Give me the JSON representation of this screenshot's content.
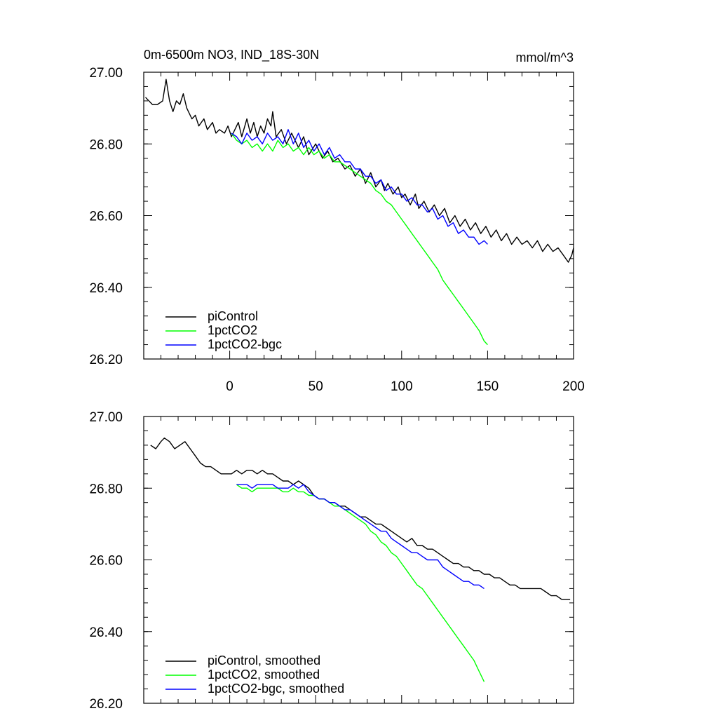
{
  "chart_data": [
    {
      "type": "line",
      "title": "0m-6500m NO3, IND_18S-30N",
      "units": "mmol/m^3",
      "xlim": [
        -50,
        200
      ],
      "ylim": [
        26.2,
        27.0
      ],
      "yticks": [
        "26.20",
        "26.40",
        "26.60",
        "26.80",
        "27.00"
      ],
      "xticks": [
        "0",
        "50",
        "100",
        "150",
        "200"
      ],
      "show_x_tick_labels": true,
      "legend_position": "bottom-left",
      "series": [
        {
          "name": "piControl",
          "color": "#000000",
          "x": [
            -49,
            -45,
            -42,
            -39,
            -37,
            -35,
            -33,
            -31,
            -29,
            -27,
            -25,
            -22,
            -20,
            -18,
            -15,
            -13,
            -10,
            -8,
            -6,
            -3,
            -1,
            1,
            3,
            5,
            7,
            10,
            12,
            14,
            16,
            18,
            20,
            22,
            24,
            25,
            27,
            30,
            33,
            36,
            40,
            43,
            46,
            50,
            54,
            57,
            60,
            63,
            67,
            70,
            73,
            76,
            79,
            82,
            85,
            88,
            90,
            92,
            95,
            98,
            100,
            102,
            105,
            108,
            110,
            113,
            116,
            119,
            122,
            125,
            128,
            131,
            134,
            137,
            140,
            143,
            146,
            149,
            152,
            155,
            158,
            161,
            164,
            167,
            170,
            173,
            176,
            179,
            182,
            185,
            188,
            191,
            194,
            197,
            199,
            200
          ],
          "values": [
            26.93,
            26.91,
            26.91,
            26.92,
            26.98,
            26.92,
            26.89,
            26.92,
            26.91,
            26.94,
            26.9,
            26.87,
            26.88,
            26.85,
            26.87,
            26.84,
            26.86,
            26.83,
            26.84,
            26.83,
            26.85,
            26.82,
            26.84,
            26.86,
            26.82,
            26.87,
            26.83,
            26.86,
            26.82,
            26.85,
            26.83,
            26.87,
            26.85,
            26.89,
            26.82,
            26.84,
            26.8,
            26.83,
            26.79,
            26.82,
            26.77,
            26.8,
            26.76,
            26.78,
            26.75,
            26.76,
            26.73,
            26.74,
            26.71,
            26.73,
            26.69,
            26.72,
            26.68,
            26.7,
            26.67,
            26.69,
            26.66,
            26.68,
            26.65,
            26.66,
            26.63,
            26.66,
            26.62,
            26.64,
            26.61,
            26.63,
            26.6,
            26.62,
            26.58,
            26.6,
            26.57,
            26.59,
            26.56,
            26.58,
            26.55,
            26.57,
            26.54,
            26.56,
            26.53,
            26.55,
            26.52,
            26.54,
            26.52,
            26.53,
            26.51,
            26.53,
            26.5,
            26.52,
            26.5,
            26.51,
            26.49,
            26.47,
            26.49,
            26.51
          ]
        },
        {
          "name": "1pctCO2",
          "color": "#00ff00",
          "x": [
            1,
            4,
            7,
            10,
            13,
            16,
            19,
            22,
            25,
            28,
            31,
            34,
            37,
            40,
            43,
            46,
            49,
            52,
            55,
            58,
            61,
            64,
            67,
            70,
            73,
            76,
            79,
            82,
            85,
            88,
            91,
            94,
            97,
            100,
            103,
            106,
            109,
            112,
            115,
            118,
            121,
            124,
            127,
            130,
            133,
            136,
            139,
            142,
            145,
            148,
            150
          ],
          "values": [
            26.83,
            26.81,
            26.8,
            26.81,
            26.79,
            26.8,
            26.78,
            26.8,
            26.78,
            26.81,
            26.79,
            26.8,
            26.78,
            26.79,
            26.77,
            26.79,
            26.77,
            26.78,
            26.76,
            26.77,
            26.75,
            26.75,
            26.74,
            26.73,
            26.72,
            26.71,
            26.7,
            26.69,
            26.67,
            26.66,
            26.64,
            26.63,
            26.61,
            26.59,
            26.57,
            26.55,
            26.53,
            26.51,
            26.49,
            26.47,
            26.45,
            26.42,
            26.4,
            26.38,
            26.36,
            26.34,
            26.32,
            26.3,
            26.28,
            26.25,
            26.24
          ]
        },
        {
          "name": "1pctCO2-bgc",
          "color": "#0000ff",
          "x": [
            1,
            4,
            7,
            10,
            13,
            16,
            19,
            22,
            25,
            28,
            31,
            34,
            37,
            40,
            43,
            46,
            49,
            52,
            55,
            58,
            61,
            64,
            67,
            70,
            73,
            76,
            79,
            82,
            85,
            88,
            91,
            94,
            97,
            100,
            103,
            106,
            109,
            112,
            115,
            118,
            121,
            124,
            127,
            130,
            133,
            136,
            139,
            142,
            145,
            148,
            150
          ],
          "values": [
            26.83,
            26.82,
            26.8,
            26.83,
            26.81,
            26.82,
            26.8,
            26.83,
            26.81,
            26.82,
            26.8,
            26.84,
            26.8,
            26.83,
            26.79,
            26.81,
            26.78,
            26.8,
            26.77,
            26.79,
            26.76,
            26.77,
            26.75,
            26.75,
            26.73,
            26.73,
            26.71,
            26.71,
            26.69,
            26.7,
            26.67,
            26.68,
            26.66,
            26.66,
            26.64,
            26.65,
            26.63,
            26.63,
            26.61,
            26.62,
            26.59,
            26.6,
            26.57,
            26.58,
            26.55,
            26.56,
            26.54,
            26.54,
            26.52,
            26.53,
            26.52
          ]
        }
      ]
    },
    {
      "type": "line",
      "title": "",
      "units": "",
      "xlim": [
        -50,
        200
      ],
      "ylim": [
        26.2,
        27.0
      ],
      "yticks": [
        "26.20",
        "26.40",
        "26.60",
        "26.80",
        "27.00"
      ],
      "xticks": [
        "0",
        "50",
        "100",
        "150",
        "200"
      ],
      "show_x_tick_labels": false,
      "legend_position": "bottom-left",
      "series": [
        {
          "name": "piControl, smoothed",
          "color": "#000000",
          "x": [
            -46,
            -43,
            -40,
            -38,
            -35,
            -32,
            -29,
            -26,
            -23,
            -20,
            -17,
            -14,
            -11,
            -8,
            -5,
            -2,
            1,
            4,
            7,
            10,
            13,
            16,
            19,
            22,
            25,
            28,
            31,
            34,
            37,
            40,
            43,
            46,
            49,
            52,
            55,
            58,
            61,
            64,
            67,
            70,
            73,
            76,
            79,
            82,
            85,
            88,
            91,
            94,
            97,
            100,
            103,
            106,
            109,
            112,
            115,
            118,
            121,
            124,
            127,
            130,
            133,
            136,
            139,
            142,
            145,
            148,
            151,
            154,
            157,
            160,
            163,
            166,
            169,
            172,
            175,
            178,
            181,
            184,
            187,
            190,
            193,
            196,
            198
          ],
          "values": [
            26.92,
            26.91,
            26.93,
            26.94,
            26.93,
            26.91,
            26.92,
            26.93,
            26.91,
            26.89,
            26.87,
            26.86,
            26.86,
            26.85,
            26.84,
            26.84,
            26.84,
            26.85,
            26.84,
            26.85,
            26.85,
            26.84,
            26.85,
            26.84,
            26.84,
            26.83,
            26.82,
            26.82,
            26.81,
            26.82,
            26.81,
            26.8,
            26.78,
            26.77,
            26.77,
            26.76,
            26.76,
            26.75,
            26.75,
            26.74,
            26.73,
            26.72,
            26.72,
            26.71,
            26.7,
            26.7,
            26.69,
            26.68,
            26.67,
            26.66,
            26.65,
            26.66,
            26.64,
            26.64,
            26.63,
            26.63,
            26.62,
            26.61,
            26.6,
            26.59,
            26.59,
            26.58,
            26.58,
            26.57,
            26.57,
            26.56,
            26.56,
            26.55,
            26.55,
            26.54,
            26.53,
            26.53,
            26.52,
            26.52,
            26.52,
            26.52,
            26.52,
            26.51,
            26.5,
            26.5,
            26.49,
            26.49,
            26.49
          ]
        },
        {
          "name": "1pctCO2, smoothed",
          "color": "#00ff00",
          "x": [
            4,
            7,
            10,
            13,
            16,
            19,
            22,
            25,
            28,
            31,
            34,
            37,
            40,
            43,
            46,
            49,
            52,
            55,
            58,
            61,
            64,
            67,
            70,
            73,
            76,
            79,
            82,
            85,
            88,
            91,
            94,
            97,
            100,
            103,
            106,
            109,
            112,
            115,
            118,
            121,
            124,
            127,
            130,
            133,
            136,
            139,
            142,
            145,
            148
          ],
          "values": [
            26.81,
            26.8,
            26.8,
            26.79,
            26.8,
            26.8,
            26.8,
            26.8,
            26.8,
            26.79,
            26.79,
            26.8,
            26.79,
            26.79,
            26.78,
            26.78,
            26.77,
            26.77,
            26.76,
            26.75,
            26.75,
            26.74,
            26.73,
            26.72,
            26.71,
            26.7,
            26.68,
            26.67,
            26.65,
            26.64,
            26.62,
            26.61,
            26.59,
            26.57,
            26.55,
            26.53,
            26.52,
            26.5,
            26.48,
            26.46,
            26.44,
            26.42,
            26.4,
            26.38,
            26.36,
            26.34,
            26.32,
            26.29,
            26.26
          ]
        },
        {
          "name": "1pctCO2-bgc, smoothed",
          "color": "#0000ff",
          "x": [
            4,
            7,
            10,
            13,
            16,
            19,
            22,
            25,
            28,
            31,
            34,
            37,
            40,
            43,
            46,
            49,
            52,
            55,
            58,
            61,
            64,
            67,
            70,
            73,
            76,
            79,
            82,
            85,
            88,
            91,
            94,
            97,
            100,
            103,
            106,
            109,
            112,
            115,
            118,
            121,
            124,
            127,
            130,
            133,
            136,
            139,
            142,
            145,
            148
          ],
          "values": [
            26.81,
            26.81,
            26.81,
            26.8,
            26.81,
            26.81,
            26.81,
            26.81,
            26.8,
            26.8,
            26.8,
            26.81,
            26.8,
            26.81,
            26.79,
            26.78,
            26.77,
            26.77,
            26.76,
            26.76,
            26.75,
            26.74,
            26.74,
            26.73,
            26.72,
            26.71,
            26.7,
            26.69,
            26.68,
            26.68,
            26.66,
            26.65,
            26.64,
            26.63,
            26.62,
            26.62,
            26.61,
            26.6,
            26.6,
            26.6,
            26.58,
            26.57,
            26.56,
            26.55,
            26.54,
            26.54,
            26.53,
            26.53,
            26.52
          ]
        }
      ]
    }
  ]
}
